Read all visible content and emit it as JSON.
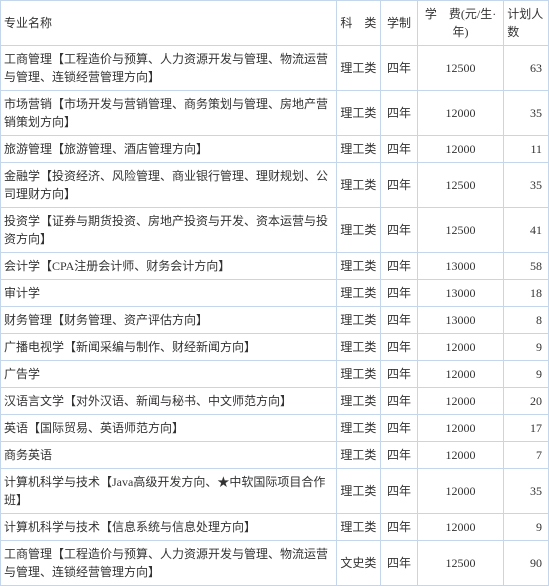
{
  "headers": {
    "major": "专业名称",
    "category": "科　类",
    "duration": "学制",
    "fee": "学　费(元/生·年)",
    "plan": "计划人数"
  },
  "rows": [
    {
      "major": "工商管理【工程造价与预算、人力资源开发与管理、物流运营与管理、连锁经营管理方向】",
      "category": "理工类",
      "duration": "四年",
      "fee": "12500",
      "plan": "63"
    },
    {
      "major": "市场营销【市场开发与营销管理、商务策划与管理、房地产营销策划方向】",
      "category": "理工类",
      "duration": "四年",
      "fee": "12000",
      "plan": "35"
    },
    {
      "major": "旅游管理【旅游管理、酒店管理方向】",
      "category": "理工类",
      "duration": "四年",
      "fee": "12000",
      "plan": "11"
    },
    {
      "major": "金融学【投资经济、风险管理、商业银行管理、理财规划、公司理财方向】",
      "category": "理工类",
      "duration": "四年",
      "fee": "12500",
      "plan": "35"
    },
    {
      "major": "投资学【证券与期货投资、房地产投资与开发、资本运营与投资方向】",
      "category": "理工类",
      "duration": "四年",
      "fee": "12500",
      "plan": "41"
    },
    {
      "major": "会计学【CPA注册会计师、财务会计方向】",
      "category": "理工类",
      "duration": "四年",
      "fee": "13000",
      "plan": "58"
    },
    {
      "major": "审计学",
      "category": "理工类",
      "duration": "四年",
      "fee": "13000",
      "plan": "18"
    },
    {
      "major": "财务管理【财务管理、资产评估方向】",
      "category": "理工类",
      "duration": "四年",
      "fee": "13000",
      "plan": "8"
    },
    {
      "major": "广播电视学【新闻采编与制作、财经新闻方向】",
      "category": "理工类",
      "duration": "四年",
      "fee": "12000",
      "plan": "9"
    },
    {
      "major": "广告学",
      "category": "理工类",
      "duration": "四年",
      "fee": "12000",
      "plan": "9"
    },
    {
      "major": "汉语言文学【对外汉语、新闻与秘书、中文师范方向】",
      "category": "理工类",
      "duration": "四年",
      "fee": "12000",
      "plan": "20"
    },
    {
      "major": "英语【国际贸易、英语师范方向】",
      "category": "理工类",
      "duration": "四年",
      "fee": "12000",
      "plan": "17"
    },
    {
      "major": "商务英语",
      "category": "理工类",
      "duration": "四年",
      "fee": "12000",
      "plan": "7"
    },
    {
      "major": "计算机科学与技术【Java高级开发方向、★中软国际项目合作班】",
      "category": "理工类",
      "duration": "四年",
      "fee": "12000",
      "plan": "35"
    },
    {
      "major": "计算机科学与技术【信息系统与信息处理方向】",
      "category": "理工类",
      "duration": "四年",
      "fee": "12000",
      "plan": "9"
    },
    {
      "major": "工商管理【工程造价与预算、人力资源开发与管理、物流运营与管理、连锁经营管理方向】",
      "category": "文史类",
      "duration": "四年",
      "fee": "12500",
      "plan": "90"
    }
  ]
}
